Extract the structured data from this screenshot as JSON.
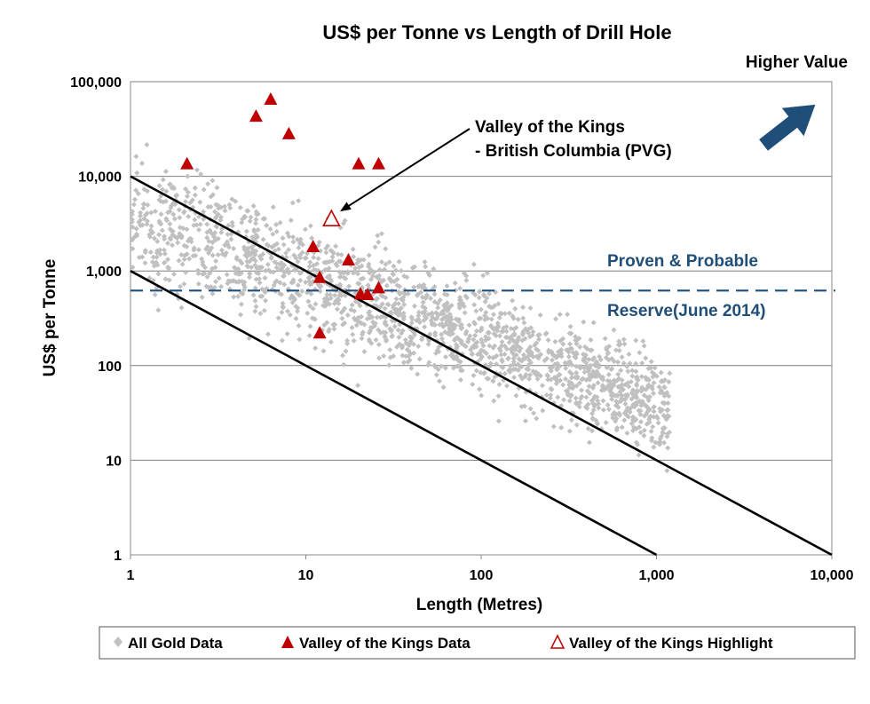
{
  "chart_data": {
    "type": "scatter",
    "title": "US$ per Tonne vs Length of Drill Hole",
    "xlabel": "Length (Metres)",
    "ylabel": "US$ per Tonne",
    "xscale": "log",
    "yscale": "log",
    "xlim": [
      1,
      10000
    ],
    "ylim": [
      1,
      100000
    ],
    "x_ticks": [
      {
        "value": 1,
        "label": "1"
      },
      {
        "value": 10,
        "label": "10"
      },
      {
        "value": 100,
        "label": "100"
      },
      {
        "value": 1000,
        "label": "1,000"
      },
      {
        "value": 10000,
        "label": "10,000"
      }
    ],
    "y_ticks": [
      {
        "value": 1,
        "label": "1"
      },
      {
        "value": 10,
        "label": "10"
      },
      {
        "value": 100,
        "label": "100"
      },
      {
        "value": 1000,
        "label": "1,000"
      },
      {
        "value": 10000,
        "label": "10,000"
      },
      {
        "value": 100000,
        "label": "100,000"
      }
    ],
    "grid": "horizontal",
    "legend_position": "bottom",
    "series": [
      {
        "name": "All Gold Data",
        "marker": "diamond",
        "color": "#c0c0c0",
        "cloud": {
          "center_line": [
            [
              1,
              4000
            ],
            [
              1000,
              40
            ]
          ],
          "y_spread_decades": 1.0,
          "x_range": [
            1,
            1200
          ],
          "count": 1900,
          "seed": 7
        }
      },
      {
        "name": "Valley of the Kings Data",
        "marker": "triangle",
        "color": "#c00000",
        "points": [
          {
            "x": 2.1,
            "y": 13500
          },
          {
            "x": 5.2,
            "y": 43000
          },
          {
            "x": 6.3,
            "y": 65000
          },
          {
            "x": 8,
            "y": 28000
          },
          {
            "x": 11,
            "y": 1800
          },
          {
            "x": 12,
            "y": 850
          },
          {
            "x": 12,
            "y": 220
          },
          {
            "x": 17.5,
            "y": 1300
          },
          {
            "x": 20,
            "y": 13500
          },
          {
            "x": 20.5,
            "y": 570
          },
          {
            "x": 22.5,
            "y": 560
          },
          {
            "x": 26,
            "y": 13500
          },
          {
            "x": 26,
            "y": 660
          }
        ]
      },
      {
        "name": "Valley of the Kings Highlight",
        "marker": "triangle-open",
        "color": "#c00000",
        "points": [
          {
            "x": 14,
            "y": 3500
          }
        ]
      }
    ],
    "reference_lines": [
      {
        "from": [
          1,
          10000
        ],
        "to": [
          10000,
          1
        ],
        "color": "#000000"
      },
      {
        "from": [
          1,
          1000
        ],
        "to": [
          1000,
          1
        ],
        "color": "#000000"
      },
      {
        "horizontal": 620,
        "style": "dashed",
        "color": "#1f4e79"
      }
    ],
    "annotations": {
      "callout_line1": "Valley of the Kings",
      "callout_line2": "- British Columbia (PVG)",
      "callout_target": {
        "x": 14,
        "y": 3500
      },
      "reserve_line1": "Proven & Probable",
      "reserve_line2": "Reserve(June 2014)",
      "higher_value": "Higher Value",
      "arrow_color": "#1f4e79"
    }
  }
}
